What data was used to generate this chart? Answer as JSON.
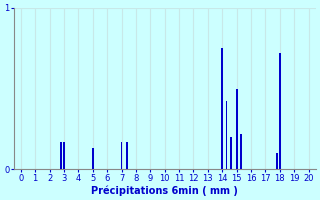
{
  "xlabel": "Précipitations 6min ( mm )",
  "background_color": "#ccffff",
  "bar_color": "#0000cc",
  "grid_color": "#c8e8e8",
  "axis_color": "#888888",
  "text_color": "#0000cc",
  "xlim": [
    -0.5,
    20.5
  ],
  "ylim": [
    0,
    1.0
  ],
  "yticks": [
    0,
    1
  ],
  "xticks": [
    0,
    1,
    2,
    3,
    4,
    5,
    6,
    7,
    8,
    9,
    10,
    11,
    12,
    13,
    14,
    15,
    16,
    17,
    18,
    19,
    20
  ],
  "bar_positions": [
    2.8,
    3.0,
    5.0,
    7.0,
    7.4,
    14.0,
    14.3,
    14.6,
    15.0,
    15.3,
    17.8,
    18.0
  ],
  "bar_heights": [
    0.17,
    0.17,
    0.13,
    0.17,
    0.17,
    0.75,
    0.42,
    0.2,
    0.5,
    0.22,
    0.1,
    0.72
  ],
  "bar_width": 0.12
}
